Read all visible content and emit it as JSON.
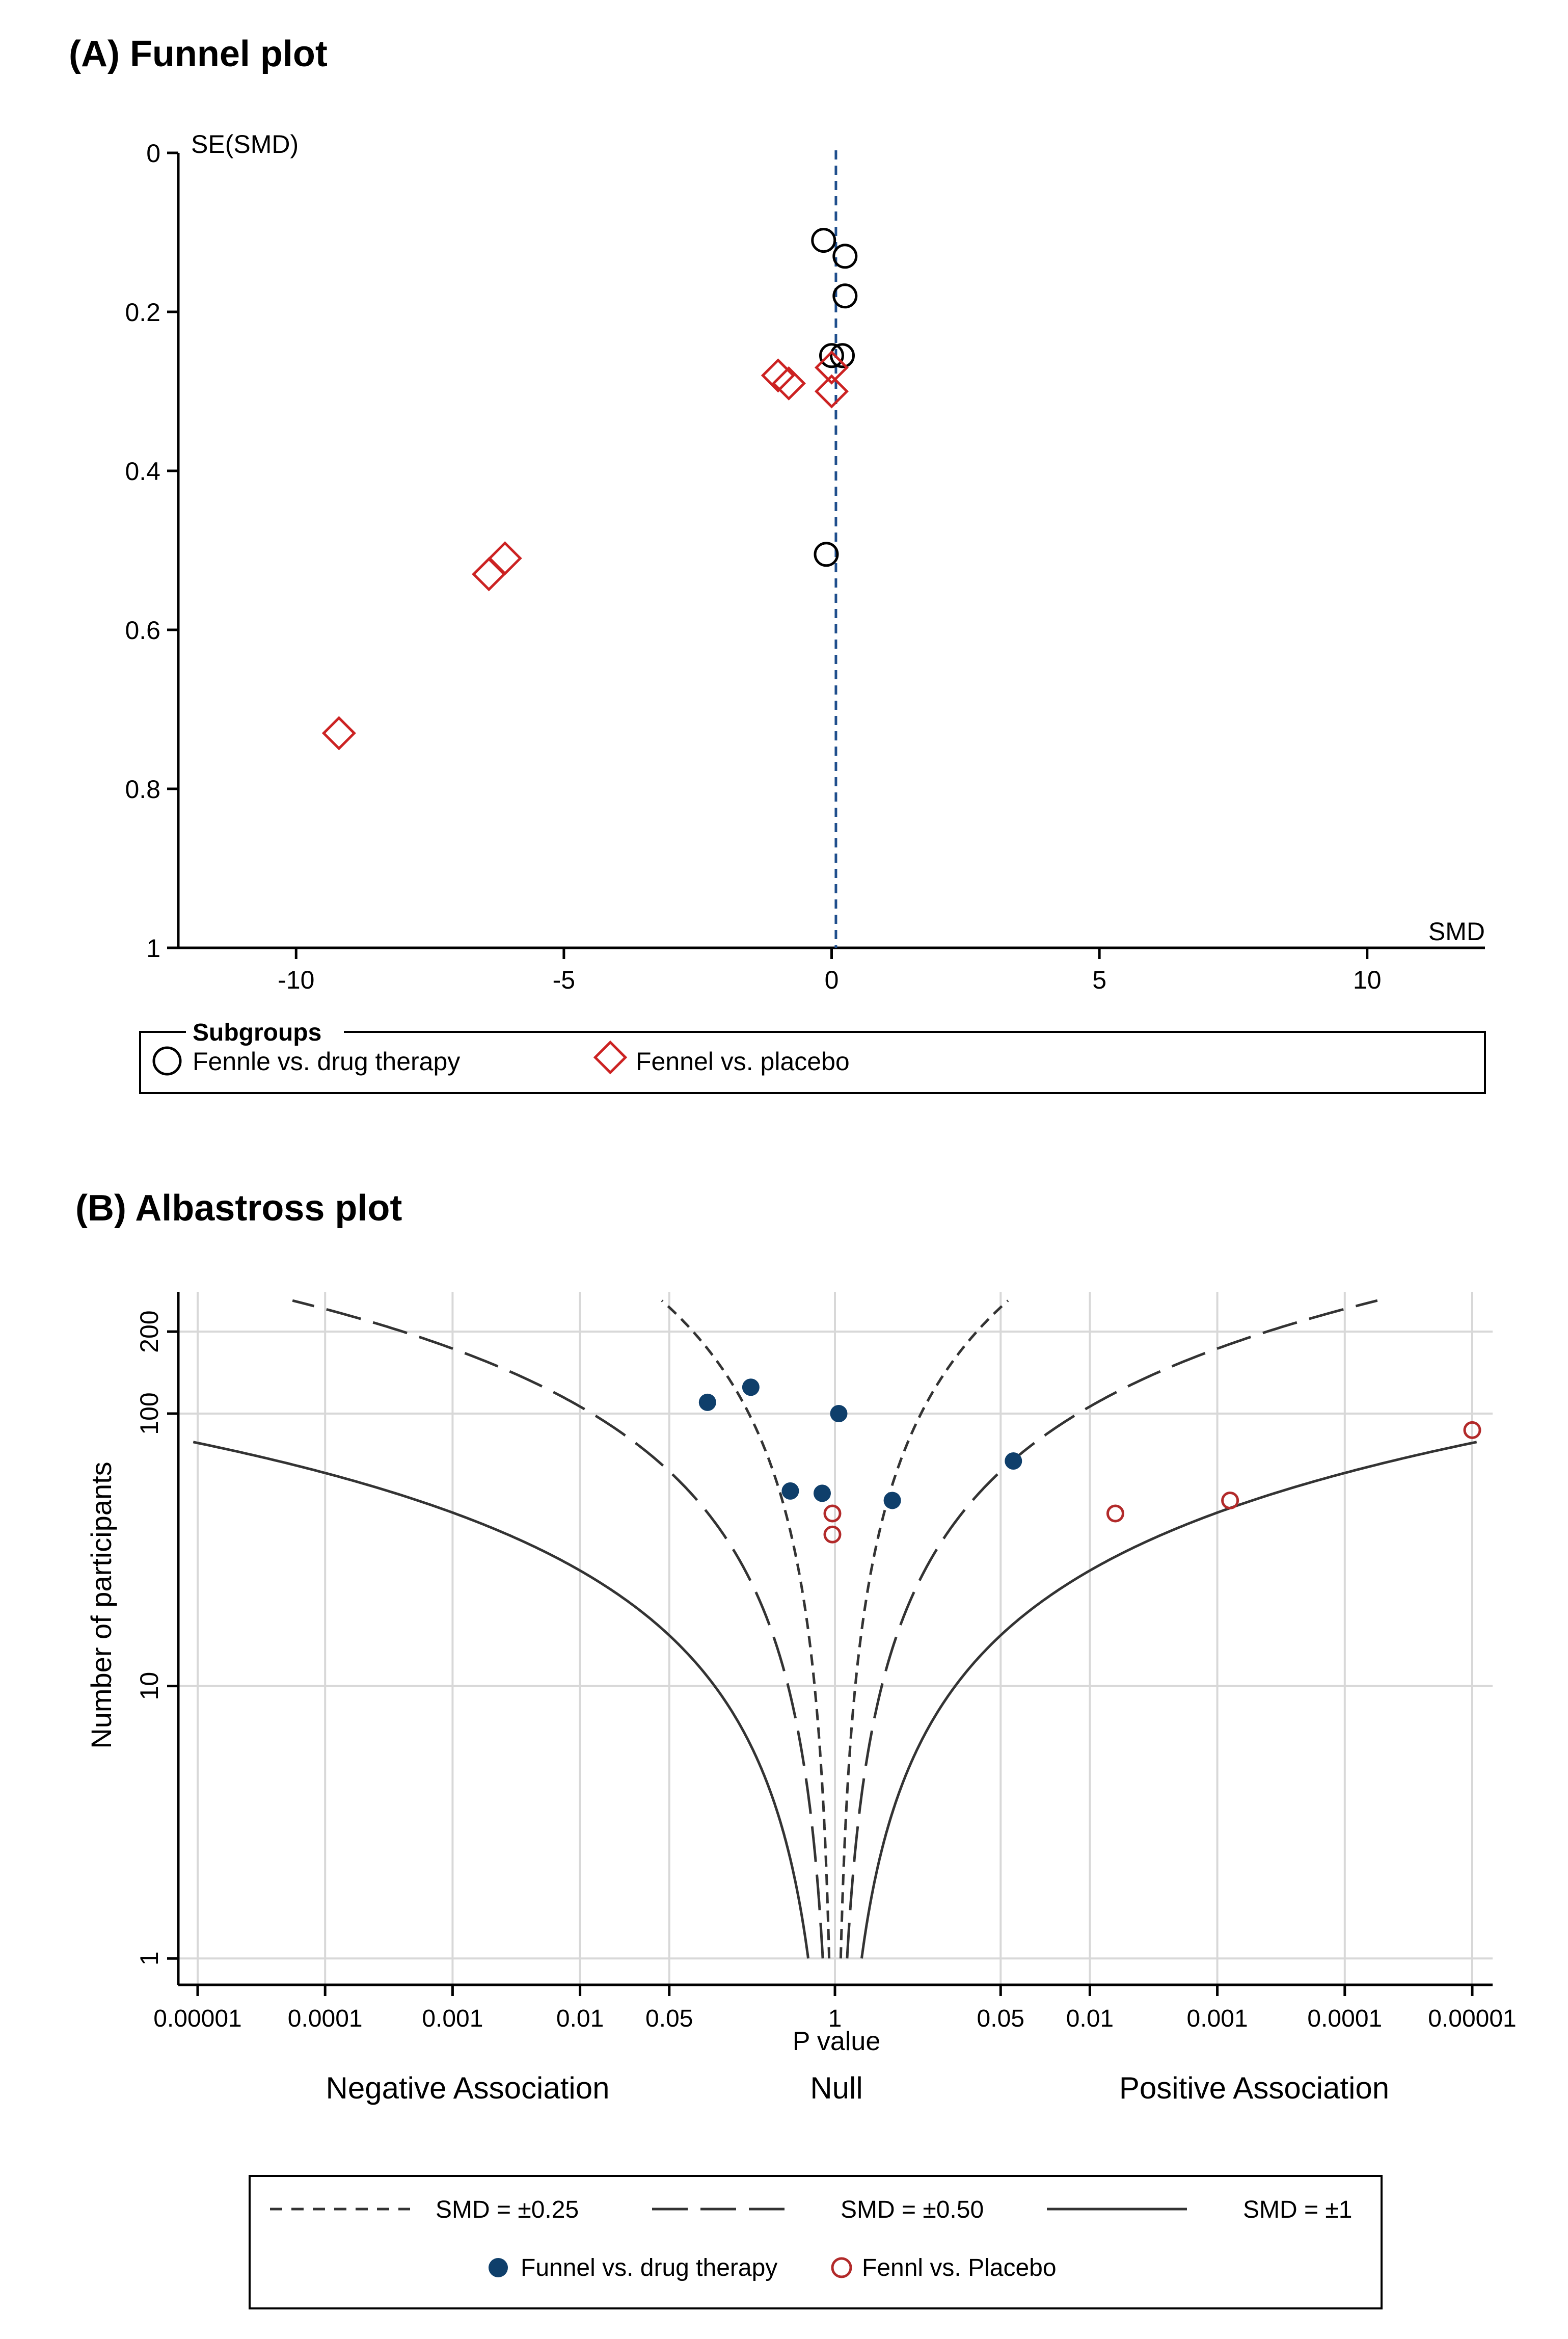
{
  "colors": {
    "axis": "#000000",
    "grid": "#d8d8d8",
    "ref_line": "#1f4e8c",
    "drug": "#000000",
    "placebo": "#cc2222",
    "filled_drug": "#0f3f6b",
    "open_placebo": "#b22a2a",
    "curve": "#333333"
  },
  "chart_data": [
    {
      "type": "scatter",
      "panel_title": "(A) Funnel plot",
      "xlabel": "SMD",
      "ylabel": "SE(SMD)",
      "xlim": [
        -12.2,
        12.2
      ],
      "ylim": [
        1,
        0
      ],
      "x_ticks": [
        -10,
        -5,
        0,
        5,
        10
      ],
      "x_tick_labels": [
        "-10",
        "-5",
        "0",
        "5",
        "10"
      ],
      "y_ticks": [
        0,
        0.2,
        0.4,
        0.6,
        0.8,
        1
      ],
      "y_tick_labels": [
        "0",
        "0.2",
        "0.4",
        "0.6",
        "0.8",
        "1"
      ],
      "reference_line_x": 0.08,
      "legend_title": "Subgroups",
      "legend_position": "bottom",
      "series": [
        {
          "name": "Fennle vs. drug therapy",
          "marker": "circle",
          "points": [
            {
              "x": -0.15,
              "y": 0.11
            },
            {
              "x": 0.25,
              "y": 0.13
            },
            {
              "x": 0.25,
              "y": 0.18
            },
            {
              "x": 0.0,
              "y": 0.255
            },
            {
              "x": 0.2,
              "y": 0.255
            },
            {
              "x": -0.1,
              "y": 0.505
            }
          ]
        },
        {
          "name": "Fennel vs. placebo",
          "marker": "diamond",
          "points": [
            {
              "x": -1.0,
              "y": 0.28
            },
            {
              "x": -0.8,
              "y": 0.29
            },
            {
              "x": 0.0,
              "y": 0.27
            },
            {
              "x": 0.0,
              "y": 0.3
            },
            {
              "x": -6.4,
              "y": 0.53
            },
            {
              "x": -6.1,
              "y": 0.51
            },
            {
              "x": -9.2,
              "y": 0.73
            }
          ]
        }
      ]
    },
    {
      "type": "scatter",
      "panel_title": "(B) Albastross plot",
      "xlabel": "P value",
      "ylabel": "Number of participants",
      "y_scale": "log",
      "ylim": [
        0.8,
        280
      ],
      "y_ticks": [
        1,
        10,
        100,
        200
      ],
      "y_tick_labels": [
        "1",
        "10",
        "100",
        "200"
      ],
      "x_ticks": [
        -5,
        -4,
        -3,
        -2,
        -1.3,
        0,
        1.3,
        2,
        3,
        4,
        5
      ],
      "x_tick_labels": [
        "0.00001",
        "0.0001",
        "0.001",
        "0.01",
        "0.05",
        "1",
        "0.05",
        "0.01",
        "0.001",
        "0.0001",
        "0.00001"
      ],
      "x_note": "x is signed -log10(P): negative side = negative association, positive side = positive association",
      "region_labels": [
        "Negative Association",
        "Null",
        "Positive Association"
      ],
      "contours": [
        {
          "label": "SMD = ±0.25",
          "smd": 0.25,
          "style": "short-dash"
        },
        {
          "label": "SMD = ±0.50",
          "smd": 0.5,
          "style": "long-dash"
        },
        {
          "label": "SMD = ±1",
          "smd": 1,
          "style": "solid"
        }
      ],
      "legend_position": "bottom",
      "series": [
        {
          "name": "Funnel vs. drug therapy",
          "marker": "filled-circle",
          "points": [
            {
              "x": -1.0,
              "y": 110
            },
            {
              "x": -0.66,
              "y": 125
            },
            {
              "x": 0.03,
              "y": 100
            },
            {
              "x": -0.35,
              "y": 52
            },
            {
              "x": -0.1,
              "y": 51
            },
            {
              "x": 0.45,
              "y": 48
            },
            {
              "x": 1.4,
              "y": 67
            }
          ]
        },
        {
          "name": "Fennl vs. Placebo",
          "marker": "open-circle",
          "points": [
            {
              "x": -0.02,
              "y": 43
            },
            {
              "x": -0.02,
              "y": 36
            },
            {
              "x": 2.2,
              "y": 43
            },
            {
              "x": 3.1,
              "y": 48
            },
            {
              "x": 5.0,
              "y": 87
            }
          ]
        }
      ]
    }
  ]
}
